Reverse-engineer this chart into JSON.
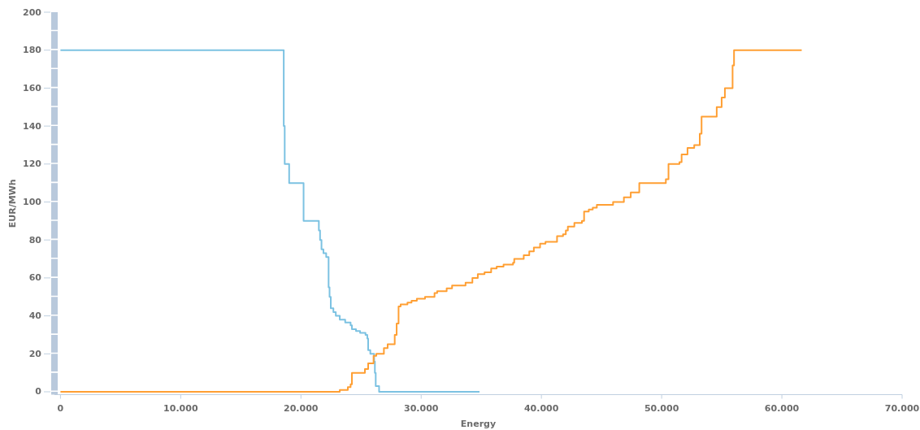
{
  "chart_data": {
    "type": "step",
    "xlabel": "Energy",
    "ylabel": "EUR/MWh",
    "xlim": [
      -500,
      70000
    ],
    "ylim": [
      -1.5,
      200
    ],
    "xticks": [
      0,
      {
        "value": 10000,
        "label": "10.000"
      },
      {
        "value": 20000,
        "label": "20.000"
      },
      {
        "value": 30000,
        "label": "30.000"
      },
      {
        "value": 40000,
        "label": "40.000"
      },
      {
        "value": 50000,
        "label": "50.000"
      },
      {
        "value": 60000,
        "label": "60.000"
      },
      {
        "value": 70000,
        "label": "70.000"
      }
    ],
    "yticks": [
      0,
      20,
      40,
      60,
      80,
      100,
      120,
      140,
      160,
      180,
      200
    ],
    "series": [
      {
        "color": "#7cc2e2",
        "x": [
          0,
          18570,
          18650,
          19020,
          20220,
          21490,
          21590,
          21710,
          21870,
          22100,
          22300,
          22380,
          22480,
          22700,
          22900,
          23230,
          23680,
          24130,
          24240,
          24580,
          24920,
          25370,
          25520,
          25590,
          25770,
          26090,
          26150,
          26220,
          26500,
          34850
        ],
        "values": [
          180,
          140,
          120,
          110,
          90,
          85,
          80,
          75,
          73,
          71,
          55,
          50,
          44,
          42,
          40,
          38,
          36.5,
          35,
          33,
          32,
          31,
          30,
          28,
          22,
          20,
          16,
          10,
          3,
          0,
          0
        ]
      },
      {
        "color": "#ff9f33",
        "x": [
          0,
          23230,
          23900,
          24130,
          24240,
          25320,
          25590,
          26040,
          26270,
          26900,
          27210,
          27800,
          27960,
          28120,
          28290,
          28860,
          29200,
          29640,
          30320,
          31110,
          31330,
          32120,
          32570,
          33690,
          34260,
          34710,
          35270,
          35820,
          36280,
          36850,
          37640,
          37740,
          38530,
          38990,
          39370,
          39890,
          40340,
          41300,
          41800,
          42030,
          42200,
          42740,
          43370,
          43550,
          43940,
          44270,
          44610,
          45960,
          46860,
          47430,
          48140,
          50350,
          50570,
          51480,
          51660,
          52150,
          52710,
          53170,
          53320,
          54580,
          54990,
          55260,
          55900,
          56020,
          61650
        ],
        "values": [
          0,
          1,
          2.5,
          4,
          10,
          12,
          15,
          19,
          20,
          23,
          25,
          30,
          36,
          45,
          46,
          47,
          48,
          49,
          50,
          52,
          53,
          54.5,
          56,
          57.5,
          60,
          62,
          63,
          65,
          66,
          67,
          68,
          70,
          72,
          74,
          76,
          78,
          79,
          82,
          83,
          85,
          87,
          89,
          90,
          95,
          96,
          97,
          98.5,
          100,
          102.5,
          105,
          110,
          112,
          120,
          121,
          125,
          128.5,
          130,
          136,
          145,
          150,
          155,
          160,
          172,
          180,
          180
        ]
      }
    ]
  }
}
